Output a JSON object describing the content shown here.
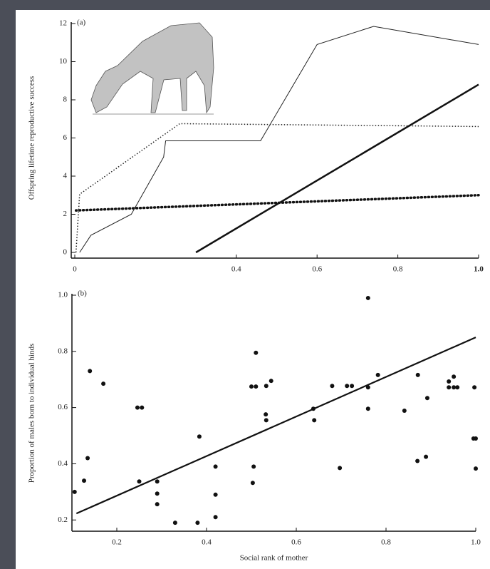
{
  "chart_data": [
    {
      "type": "line",
      "annotation": "(a)",
      "y_label": "Offspring lifetime reproductive success",
      "xlim": [
        0,
        1
      ],
      "ylim": [
        0,
        12
      ],
      "xticks": [
        0,
        0.4,
        0.6,
        0.8,
        {
          "value": 1,
          "label": "1.0"
        }
      ],
      "yticks": [
        0,
        2,
        4,
        6,
        8,
        10,
        12
      ],
      "series": [
        {
          "style": "thin",
          "color": "#222222",
          "x": [
            0.012,
            0.04,
            0.14,
            0.22,
            0.225,
            0.46,
            0.6,
            0.74,
            1.0
          ],
          "values": [
            0,
            0.9,
            2.0,
            5.0,
            5.85,
            5.85,
            10.9,
            11.85,
            10.9
          ]
        },
        {
          "style": "fine-dotted",
          "color": "#222222",
          "x": [
            0.003,
            0.012,
            0.26,
            1.0
          ],
          "values": [
            0,
            3.05,
            6.75,
            6.6
          ]
        },
        {
          "style": "thick-dotted",
          "color": "#111111",
          "x": [
            0.003,
            1.0
          ],
          "values": [
            2.2,
            3.0
          ]
        },
        {
          "style": "thick",
          "color": "#111111",
          "x": [
            0.3,
            1.0
          ],
          "values": [
            0,
            8.8
          ]
        }
      ]
    },
    {
      "type": "scatter",
      "annotation": "(b)",
      "y_label": "Proportion of males born to individual hinds",
      "x_label": "Social rank of mother",
      "xlim": [
        0.1,
        1.0
      ],
      "ylim": [
        0.16,
        1.0
      ],
      "xticks": [
        0.2,
        0.4,
        0.6,
        0.8,
        {
          "value": 1,
          "label": "1.0"
        }
      ],
      "yticks": [
        0.2,
        0.4,
        0.6,
        0.8,
        {
          "value": 1,
          "label": "1.0"
        }
      ],
      "series": [
        {
          "mode": "markers",
          "color": "#111111",
          "x": [
            0.106,
            0.127,
            0.135,
            0.14,
            0.17,
            0.246,
            0.256,
            0.25,
            0.29,
            0.29,
            0.29,
            0.33,
            0.38,
            0.384,
            0.42,
            0.42,
            0.42,
            0.5,
            0.51,
            0.51,
            0.505,
            0.503,
            0.533,
            0.544,
            0.532,
            0.533,
            0.638,
            0.64,
            0.68,
            0.697,
            0.713,
            0.724,
            0.76,
            0.76,
            0.76,
            0.782,
            0.841,
            0.871,
            0.892,
            0.889,
            0.87,
            0.94,
            0.94,
            0.951,
            0.951,
            0.959,
            0.997,
            0.995,
            1.0,
            1.0
          ],
          "values": [
            0.3,
            0.34,
            0.42,
            0.73,
            0.685,
            0.6,
            0.6,
            0.337,
            0.337,
            0.294,
            0.256,
            0.19,
            0.19,
            0.497,
            0.39,
            0.29,
            0.21,
            0.675,
            0.675,
            0.795,
            0.39,
            0.332,
            0.677,
            0.695,
            0.576,
            0.555,
            0.596,
            0.555,
            0.677,
            0.385,
            0.677,
            0.677,
            0.99,
            0.672,
            0.596,
            0.716,
            0.589,
            0.716,
            0.634,
            0.425,
            0.41,
            0.693,
            0.672,
            0.71,
            0.672,
            0.672,
            0.672,
            0.49,
            0.49,
            0.383
          ]
        },
        {
          "mode": "line",
          "color": "#111111",
          "x": [
            0.11,
            1.0
          ],
          "values": [
            0.223,
            0.85
          ]
        }
      ]
    }
  ]
}
